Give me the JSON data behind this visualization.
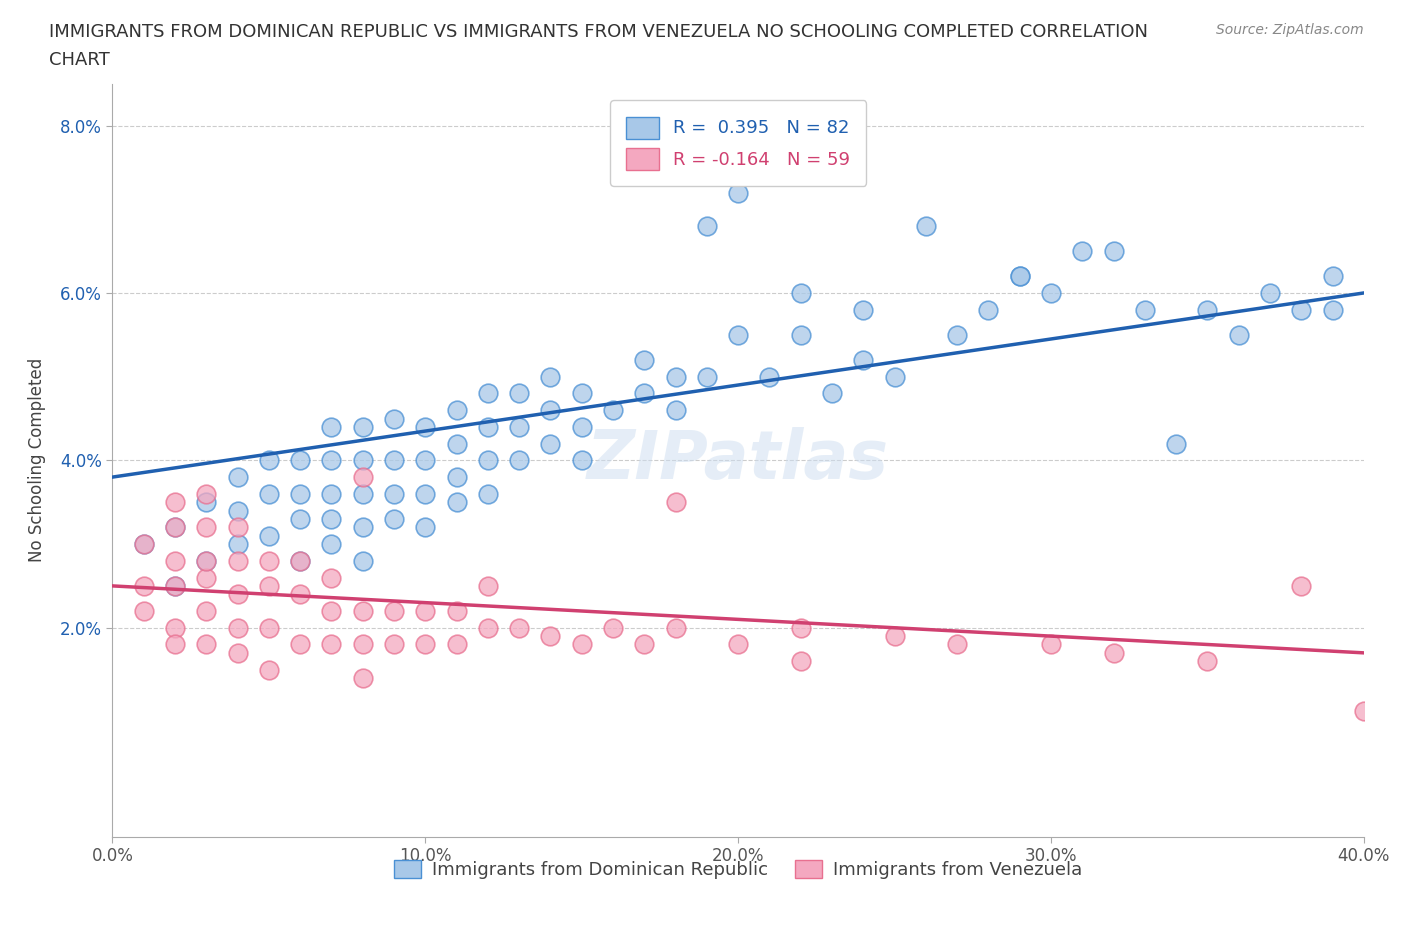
{
  "title_line1": "IMMIGRANTS FROM DOMINICAN REPUBLIC VS IMMIGRANTS FROM VENEZUELA NO SCHOOLING COMPLETED CORRELATION",
  "title_line2": "CHART",
  "source": "Source: ZipAtlas.com",
  "ylabel": "No Schooling Completed",
  "legend1_label": "R =  0.395   N = 82",
  "legend2_label": "R = -0.164   N = 59",
  "legend1_bottom": "Immigrants from Dominican Republic",
  "legend2_bottom": "Immigrants from Venezuela",
  "blue_color": "#a8c8e8",
  "pink_color": "#f4a8c0",
  "blue_edge_color": "#4a90d4",
  "pink_edge_color": "#e87090",
  "blue_line_color": "#2060b0",
  "pink_line_color": "#d04070",
  "xlim": [
    0.0,
    0.4
  ],
  "ylim": [
    -0.005,
    0.085
  ],
  "xticks": [
    0.0,
    0.1,
    0.2,
    0.3,
    0.4
  ],
  "xtick_labels": [
    "0.0%",
    "10.0%",
    "20.0%",
    "30.0%",
    "40.0%"
  ],
  "yticks": [
    0.02,
    0.04,
    0.06,
    0.08
  ],
  "ytick_labels": [
    "2.0%",
    "4.0%",
    "6.0%",
    "8.0%"
  ],
  "watermark": "ZIPatlas",
  "blue_trend_x": [
    0.0,
    0.4
  ],
  "blue_trend_y": [
    0.038,
    0.06
  ],
  "pink_trend_x": [
    0.0,
    0.4
  ],
  "pink_trend_y": [
    0.025,
    0.017
  ],
  "blue_scatter_x": [
    0.01,
    0.02,
    0.02,
    0.03,
    0.03,
    0.04,
    0.04,
    0.04,
    0.05,
    0.05,
    0.05,
    0.06,
    0.06,
    0.06,
    0.06,
    0.07,
    0.07,
    0.07,
    0.07,
    0.07,
    0.08,
    0.08,
    0.08,
    0.08,
    0.08,
    0.09,
    0.09,
    0.09,
    0.09,
    0.1,
    0.1,
    0.1,
    0.1,
    0.11,
    0.11,
    0.11,
    0.11,
    0.12,
    0.12,
    0.12,
    0.12,
    0.13,
    0.13,
    0.13,
    0.14,
    0.14,
    0.14,
    0.15,
    0.15,
    0.15,
    0.16,
    0.17,
    0.17,
    0.18,
    0.18,
    0.19,
    0.2,
    0.21,
    0.22,
    0.22,
    0.23,
    0.24,
    0.25,
    0.27,
    0.28,
    0.29,
    0.3,
    0.31,
    0.33,
    0.35,
    0.37,
    0.38,
    0.39,
    0.19,
    0.2,
    0.24,
    0.26,
    0.29,
    0.32,
    0.34,
    0.36,
    0.39
  ],
  "blue_scatter_y": [
    0.03,
    0.025,
    0.032,
    0.028,
    0.035,
    0.03,
    0.034,
    0.038,
    0.031,
    0.036,
    0.04,
    0.028,
    0.033,
    0.036,
    0.04,
    0.03,
    0.033,
    0.036,
    0.04,
    0.044,
    0.028,
    0.032,
    0.036,
    0.04,
    0.044,
    0.033,
    0.036,
    0.04,
    0.045,
    0.032,
    0.036,
    0.04,
    0.044,
    0.035,
    0.038,
    0.042,
    0.046,
    0.036,
    0.04,
    0.044,
    0.048,
    0.04,
    0.044,
    0.048,
    0.042,
    0.046,
    0.05,
    0.04,
    0.044,
    0.048,
    0.046,
    0.048,
    0.052,
    0.046,
    0.05,
    0.05,
    0.055,
    0.05,
    0.055,
    0.06,
    0.048,
    0.052,
    0.05,
    0.055,
    0.058,
    0.062,
    0.06,
    0.065,
    0.058,
    0.058,
    0.06,
    0.058,
    0.062,
    0.068,
    0.072,
    0.058,
    0.068,
    0.062,
    0.065,
    0.042,
    0.055,
    0.058
  ],
  "pink_scatter_x": [
    0.01,
    0.01,
    0.01,
    0.02,
    0.02,
    0.02,
    0.02,
    0.02,
    0.02,
    0.03,
    0.03,
    0.03,
    0.03,
    0.03,
    0.03,
    0.04,
    0.04,
    0.04,
    0.04,
    0.04,
    0.05,
    0.05,
    0.05,
    0.05,
    0.06,
    0.06,
    0.06,
    0.07,
    0.07,
    0.07,
    0.08,
    0.08,
    0.08,
    0.09,
    0.09,
    0.1,
    0.1,
    0.11,
    0.11,
    0.12,
    0.13,
    0.14,
    0.15,
    0.16,
    0.17,
    0.18,
    0.2,
    0.22,
    0.25,
    0.27,
    0.3,
    0.32,
    0.35,
    0.38,
    0.4,
    0.08,
    0.12,
    0.18,
    0.22
  ],
  "pink_scatter_y": [
    0.025,
    0.03,
    0.022,
    0.02,
    0.025,
    0.028,
    0.032,
    0.035,
    0.018,
    0.022,
    0.026,
    0.028,
    0.032,
    0.036,
    0.018,
    0.02,
    0.024,
    0.028,
    0.032,
    0.017,
    0.02,
    0.025,
    0.028,
    0.015,
    0.018,
    0.024,
    0.028,
    0.018,
    0.022,
    0.026,
    0.018,
    0.022,
    0.014,
    0.018,
    0.022,
    0.018,
    0.022,
    0.018,
    0.022,
    0.02,
    0.02,
    0.019,
    0.018,
    0.02,
    0.018,
    0.02,
    0.018,
    0.02,
    0.019,
    0.018,
    0.018,
    0.017,
    0.016,
    0.025,
    0.01,
    0.038,
    0.025,
    0.035,
    0.016
  ]
}
